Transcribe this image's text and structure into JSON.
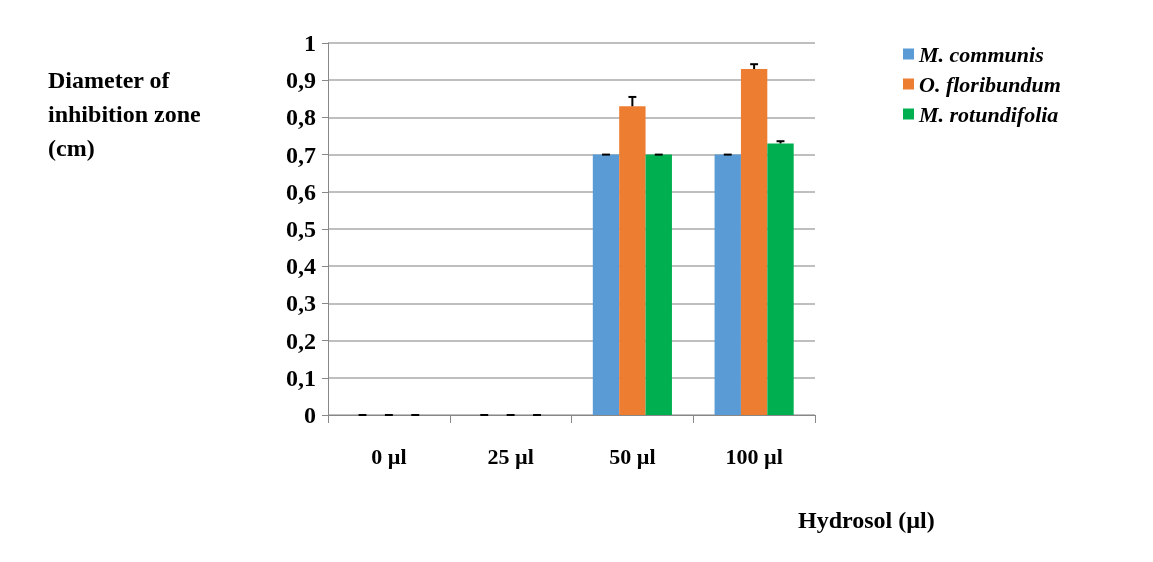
{
  "chart_data": {
    "type": "bar",
    "xlabel": "Hydrosol (µl)",
    "ylabel": "Diameter of inhibition zone (cm)",
    "categories": [
      "0 µl",
      "25 µl",
      "50 µl",
      "100 µl"
    ],
    "series": [
      {
        "name": "M. communis",
        "color": "#5b9bd5",
        "values": [
          0,
          0,
          0.7,
          0.7
        ],
        "errors": [
          0,
          0,
          0,
          0
        ]
      },
      {
        "name": "O. floribundum",
        "color": "#ed7d31",
        "values": [
          0,
          0,
          0.83,
          0.93
        ],
        "errors": [
          0,
          0,
          0.025,
          0.013
        ]
      },
      {
        "name": "M. rotundifolia",
        "color": "#00b050",
        "values": [
          0,
          0,
          0.7,
          0.73
        ],
        "errors": [
          0,
          0,
          0,
          0.006
        ]
      }
    ],
    "ylim": [
      0,
      1
    ],
    "yticks": [
      0,
      {
        "value": 0.1,
        "label": "0,1"
      },
      {
        "value": 0.2,
        "label": "0,2"
      },
      {
        "value": 0.3,
        "label": "0,3"
      },
      {
        "value": 0.4,
        "label": "0,4"
      },
      {
        "value": 0.5,
        "label": "0,5"
      },
      {
        "value": 0.6,
        "label": "0,6"
      },
      {
        "value": 0.7,
        "label": "0,7"
      },
      {
        "value": 0.8,
        "label": "0,8"
      },
      {
        "value": 0.9,
        "label": "0,9"
      },
      1
    ],
    "grid": "y",
    "legend": "top right"
  }
}
